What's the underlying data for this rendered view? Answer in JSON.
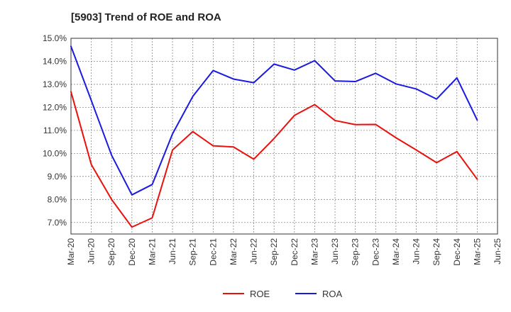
{
  "chart_data": {
    "type": "line",
    "title": "[5903]  Trend of ROE and ROA",
    "xlabel": "",
    "ylabel": "",
    "x": [
      "Mar-20",
      "Jun-20",
      "Sep-20",
      "Dec-20",
      "Mar-21",
      "Jun-21",
      "Sep-21",
      "Dec-21",
      "Mar-22",
      "Jun-22",
      "Sep-22",
      "Dec-22",
      "Mar-23",
      "Jun-23",
      "Sep-23",
      "Dec-23",
      "Mar-24",
      "Jun-24",
      "Sep-24",
      "Dec-24",
      "Mar-25",
      "Jun-25"
    ],
    "ylim": [
      6.5,
      15.0
    ],
    "yticks": [
      7.0,
      8.0,
      9.0,
      10.0,
      11.0,
      12.0,
      13.0,
      14.0,
      15.0
    ],
    "ytick_labels": [
      "7.0%",
      "8.0%",
      "9.0%",
      "10.0%",
      "11.0%",
      "12.0%",
      "13.0%",
      "14.0%",
      "15.0%"
    ],
    "grid": true,
    "legend_position": "bottom",
    "series": [
      {
        "name": "ROE",
        "color": "#e8120c",
        "values": [
          12.68,
          9.52,
          8.0,
          6.8,
          7.2,
          10.15,
          10.95,
          10.33,
          10.28,
          9.75,
          10.65,
          11.65,
          12.12,
          11.43,
          11.25,
          11.26,
          10.68,
          10.15,
          9.6,
          10.08,
          8.88,
          null
        ]
      },
      {
        "name": "ROA",
        "color": "#1a1ae0",
        "values": [
          14.65,
          12.3,
          9.92,
          8.2,
          8.65,
          10.85,
          12.48,
          13.6,
          13.23,
          13.07,
          13.88,
          13.62,
          14.03,
          13.15,
          13.12,
          13.48,
          13.02,
          12.8,
          12.36,
          13.28,
          11.45,
          null
        ]
      }
    ]
  }
}
